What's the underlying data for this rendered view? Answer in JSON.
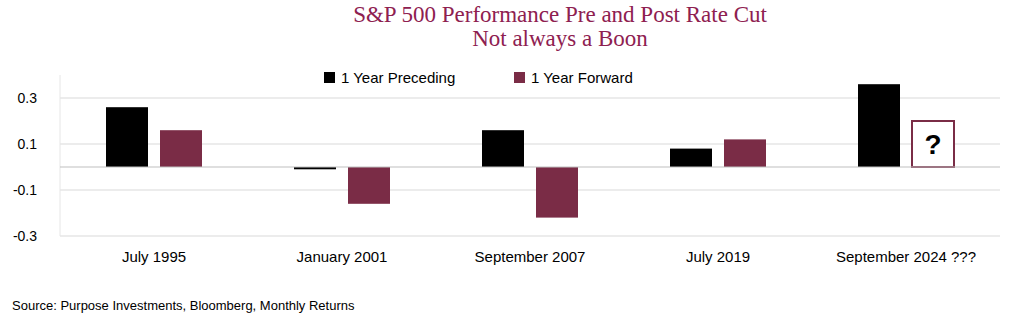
{
  "chart_data": {
    "type": "bar",
    "title": "S&P 500 Performance Pre and Post Rate Cut",
    "subtitle": "Not always a Boon",
    "source": "Source: Purpose Investments, Bloomberg, Monthly Returns",
    "categories": [
      "July 1995",
      "January 2001",
      "September 2007",
      "July 2019",
      "September 2024 ???"
    ],
    "series": [
      {
        "name": "1 Year Preceding",
        "color": "#000000",
        "values": [
          0.26,
          -0.01,
          0.16,
          0.08,
          0.36
        ]
      },
      {
        "name": "1 Year Forward",
        "color": "#7a2c46",
        "values": [
          0.16,
          -0.16,
          -0.22,
          0.12,
          null
        ]
      }
    ],
    "annotations": [
      {
        "text": "?",
        "category": "September 2024 ???",
        "series": "1 Year Forward",
        "value": 0.2
      }
    ],
    "ylim": [
      -0.3,
      0.4
    ],
    "yticks": [
      -0.3,
      -0.1,
      0.1,
      0.3
    ],
    "grid": true,
    "legend": "top"
  }
}
